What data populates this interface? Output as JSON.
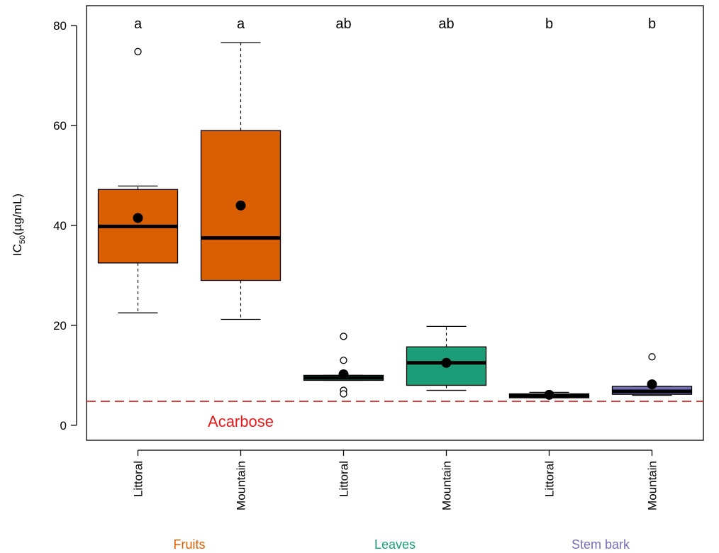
{
  "chart_data": {
    "type": "box",
    "ylabel_main": "IC",
    "ylabel_sub": "50",
    "ylabel_rest": "(µg/mL)",
    "ylim": [
      -3,
      84
    ],
    "yticks": [
      0,
      20,
      40,
      60,
      80
    ],
    "categories": [
      "Littoral",
      "Mountain",
      "Littoral",
      "Mountain",
      "Littoral",
      "Mountain"
    ],
    "groups": [
      {
        "name": "Fruits",
        "color": "#d95f02",
        "label_color": "#d95f02"
      },
      {
        "name": "Leaves",
        "color": "#1b9e77",
        "label_color": "#1b9e77"
      },
      {
        "name": "Stem bark",
        "color": "#7570b3",
        "label_color": "#7570b3"
      }
    ],
    "boxes": [
      {
        "group": 0,
        "category": "Littoral",
        "whisker_low": 22.5,
        "q1": 32.5,
        "median": 39.8,
        "q3": 47.2,
        "whisker_high": 47.9,
        "mean": 41.5,
        "outliers": [
          74.8
        ],
        "letter": "a"
      },
      {
        "group": 0,
        "category": "Mountain",
        "whisker_low": 21.2,
        "q1": 29.0,
        "median": 37.5,
        "q3": 59.0,
        "whisker_high": 76.6,
        "mean": 44.0,
        "outliers": [],
        "letter": "a"
      },
      {
        "group": 1,
        "category": "Littoral",
        "whisker_low": 9.0,
        "q1": 9.0,
        "median": 9.5,
        "q3": 10.0,
        "whisker_high": 10.0,
        "mean": 10.2,
        "outliers": [
          17.8,
          13.0,
          7.0,
          6.3
        ],
        "letter": "ab"
      },
      {
        "group": 1,
        "category": "Mountain",
        "whisker_low": 7.0,
        "q1": 8.0,
        "median": 12.5,
        "q3": 15.7,
        "whisker_high": 19.8,
        "mean": 12.5,
        "outliers": [],
        "letter": "ab"
      },
      {
        "group": 2,
        "category": "Littoral",
        "whisker_low": 5.5,
        "q1": 5.5,
        "median": 5.9,
        "q3": 6.3,
        "whisker_high": 6.6,
        "mean": 6.1,
        "outliers": [],
        "letter": "b"
      },
      {
        "group": 2,
        "category": "Mountain",
        "whisker_low": 6.0,
        "q1": 6.2,
        "median": 6.8,
        "q3": 7.8,
        "whisker_high": 7.8,
        "mean": 8.2,
        "outliers": [
          13.7
        ],
        "letter": "b"
      }
    ],
    "reference_line": {
      "value": 4.8,
      "label": "Acarbose",
      "color": "#e41a1c",
      "style": "dashed"
    }
  }
}
